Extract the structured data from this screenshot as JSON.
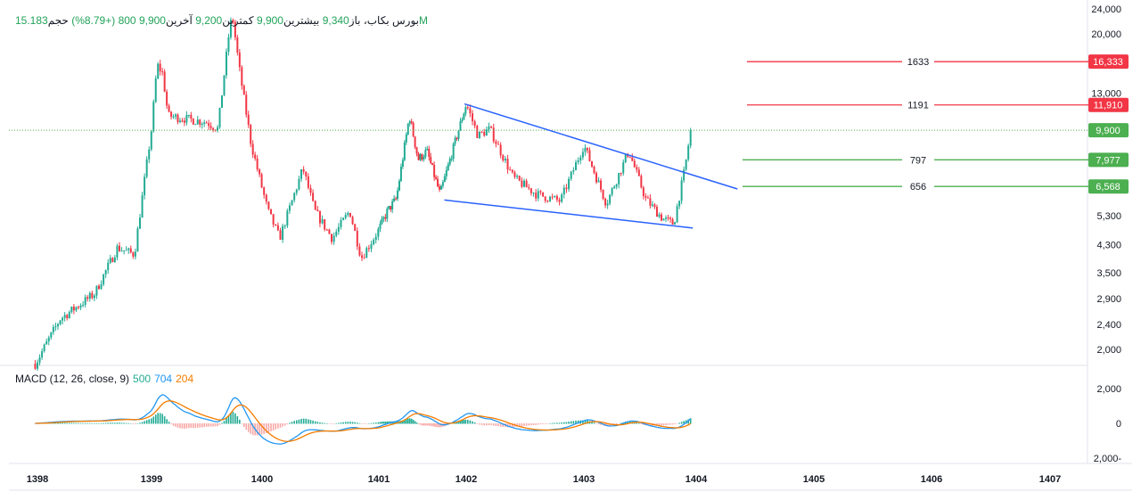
{
  "header": {
    "symbol": "بورس",
    "name": "بکاب،",
    "open_label": "باز",
    "open": "9,340",
    "high_label": "بیشترین",
    "high": "9,900",
    "low_label": "کمترین",
    "low": "9,200",
    "last_label": "آخرین",
    "last": "9,900",
    "change": "800 (+8.79%)",
    "volume_label": "حجم",
    "volume": "15.183M"
  },
  "macd": {
    "label": "MACD (12, 26, close, 9)",
    "hist": "500",
    "macd": "704",
    "signal": "204"
  },
  "colors": {
    "up": "#22ab94",
    "down": "#f23645",
    "trend": "#2962ff",
    "macd": "#2196f3",
    "signal": "#f57c00",
    "red_level": "#f23645",
    "green_level": "#4caf50"
  },
  "chart_data": {
    "type": "candlestick",
    "yscale": "log",
    "ylim": [
      1800,
      24000
    ],
    "y_ticks": [
      "24,000",
      "20,000",
      "13,000",
      "5,300",
      "4,300",
      "3,500",
      "2,900",
      "2,400",
      "2,000"
    ],
    "y_tick_values": [
      24000,
      20000,
      13000,
      5300,
      4300,
      3500,
      2900,
      2400,
      2000
    ],
    "x_ticks": [
      "1398",
      "1399",
      "1400",
      "1401",
      "1402",
      "1403",
      "1404",
      "1405",
      "1406",
      "1407"
    ],
    "approx_closes": [
      [
        1397.98,
        1800
      ],
      [
        1398.2,
        2500
      ],
      [
        1398.5,
        3000
      ],
      [
        1398.7,
        4200
      ],
      [
        1398.85,
        4000
      ],
      [
        1399.0,
        10000
      ],
      [
        1399.05,
        16000
      ],
      [
        1399.1,
        15000
      ],
      [
        1399.15,
        11000
      ],
      [
        1399.5,
        10500
      ],
      [
        1399.6,
        10000
      ],
      [
        1399.7,
        20000
      ],
      [
        1399.73,
        23000
      ],
      [
        1399.8,
        15000
      ],
      [
        1399.9,
        9000
      ],
      [
        1400.05,
        5500
      ],
      [
        1400.15,
        4500
      ],
      [
        1400.35,
        7500
      ],
      [
        1400.45,
        5500
      ],
      [
        1400.6,
        4500
      ],
      [
        1400.75,
        5500
      ],
      [
        1400.85,
        3900
      ],
      [
        1401.1,
        5500
      ],
      [
        1401.2,
        6000
      ],
      [
        1401.35,
        11000
      ],
      [
        1401.45,
        8000
      ],
      [
        1401.55,
        8500
      ],
      [
        1401.7,
        6200
      ],
      [
        1402.0,
        12000
      ],
      [
        1402.1,
        9500
      ],
      [
        1402.2,
        10000
      ],
      [
        1402.4,
        7000
      ],
      [
        1402.6,
        6200
      ],
      [
        1402.8,
        5900
      ],
      [
        1403.0,
        8900
      ],
      [
        1403.2,
        5800
      ],
      [
        1403.4,
        8500
      ],
      [
        1403.55,
        6000
      ],
      [
        1403.7,
        5200
      ],
      [
        1403.8,
        5000
      ],
      [
        1403.9,
        7500
      ],
      [
        1403.95,
        9900
      ]
    ],
    "current_price": {
      "value": 9900,
      "label": "9,900"
    },
    "levels": [
      {
        "value": 16333,
        "label": "16,333",
        "note": "1633",
        "kind": "red"
      },
      {
        "value": 11910,
        "label": "11,910",
        "note": "1191",
        "kind": "red"
      },
      {
        "value": 7977,
        "label": "7,977",
        "note": "797",
        "kind": "green"
      },
      {
        "value": 6568,
        "label": "6,568",
        "note": "656",
        "kind": "green"
      }
    ],
    "trendlines": [
      {
        "name": "upper",
        "from": [
          1401.98,
          12000
        ],
        "to": [
          1404.35,
          6450
        ]
      },
      {
        "name": "lower",
        "from": [
          1401.75,
          5950
        ],
        "to": [
          1403.97,
          4850
        ]
      }
    ],
    "macd_ticks": [
      "2,000",
      "0",
      "2,000-"
    ],
    "macd_tick_values": [
      2000,
      0,
      -2000
    ]
  }
}
